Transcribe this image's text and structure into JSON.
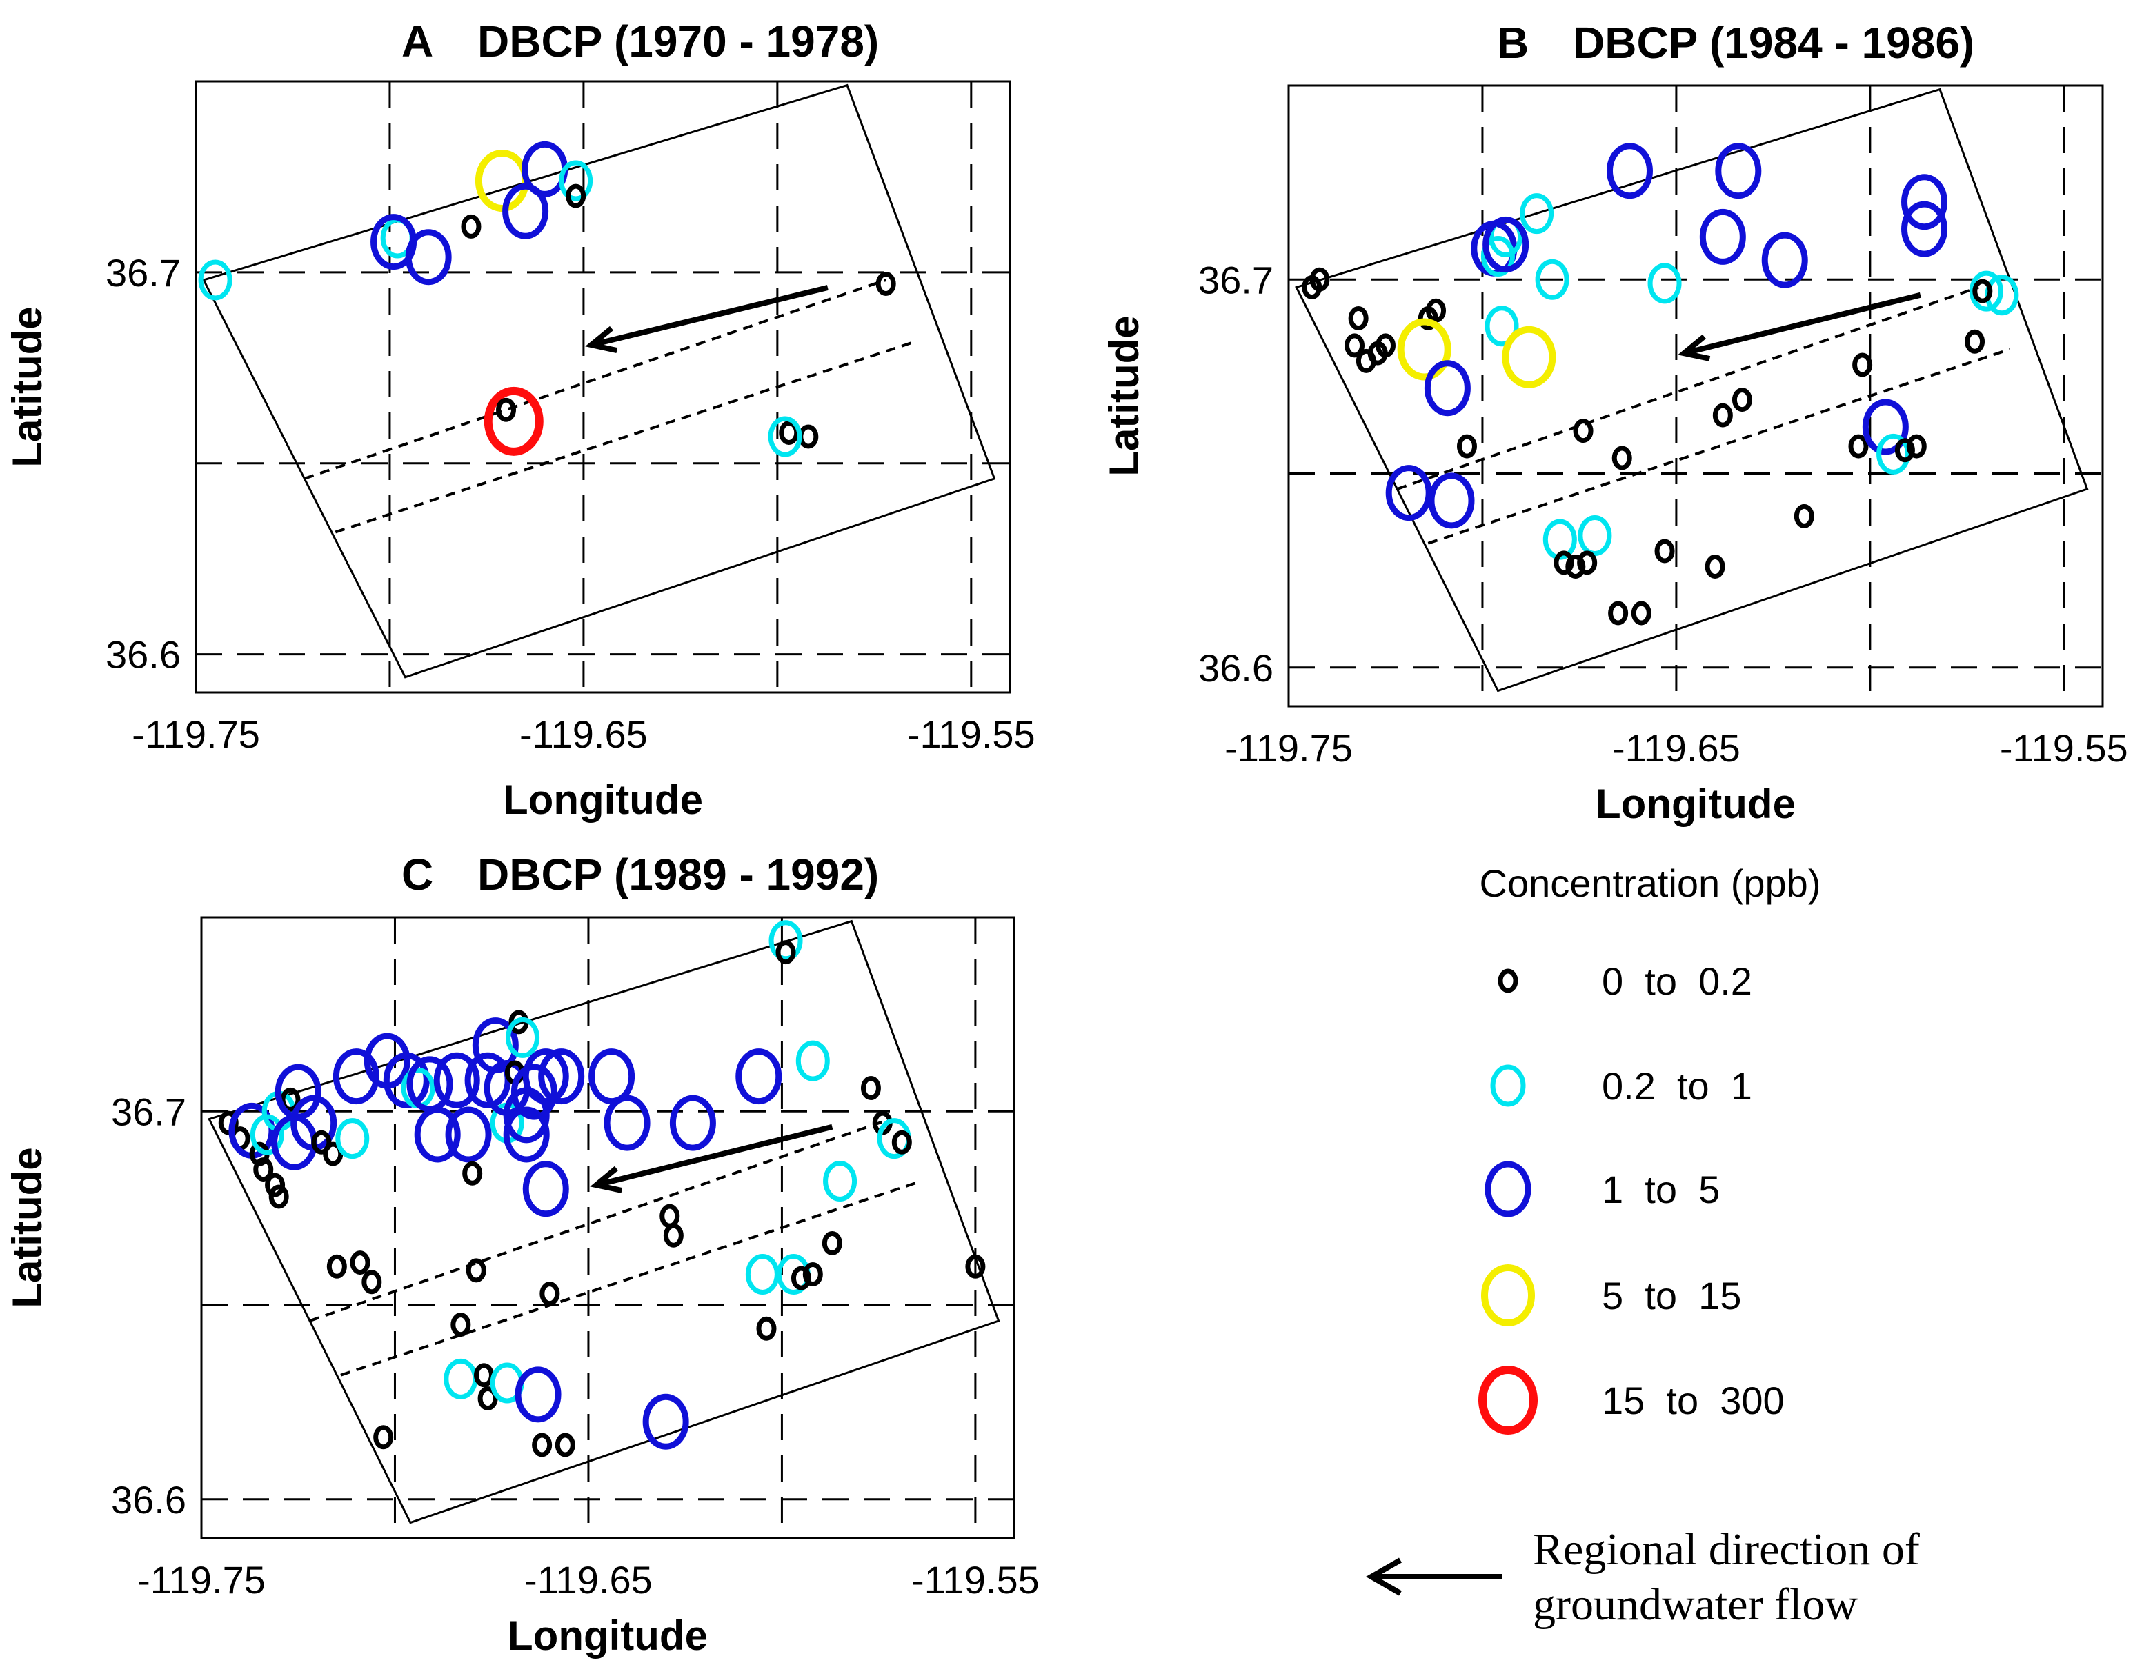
{
  "chart_data": [
    {
      "type": "scatter",
      "panel_letter": "A",
      "title": "DBCP (1970 - 1978)",
      "xlabel": "Longitude",
      "ylabel": "Latitude",
      "xlim": [
        -119.75,
        -119.54
      ],
      "ylim": [
        36.59,
        36.75
      ],
      "xticks": [
        -119.75,
        -119.65,
        -119.55
      ],
      "xtick_labels": [
        "-119.75",
        "-119.65",
        "-119.55"
      ],
      "yticks": [
        36.6,
        36.7
      ],
      "ytick_labels": [
        "36.6",
        "36.7"
      ],
      "points": [
        {
          "lon": -119.745,
          "lat": 36.698,
          "cat": 1
        },
        {
          "lon": -119.698,
          "lat": 36.709,
          "cat": 1
        },
        {
          "lon": -119.699,
          "lat": 36.708,
          "cat": 2
        },
        {
          "lon": -119.69,
          "lat": 36.704,
          "cat": 2
        },
        {
          "lon": -119.679,
          "lat": 36.712,
          "cat": 0
        },
        {
          "lon": -119.671,
          "lat": 36.724,
          "cat": 3
        },
        {
          "lon": -119.665,
          "lat": 36.716,
          "cat": 2
        },
        {
          "lon": -119.66,
          "lat": 36.727,
          "cat": 2
        },
        {
          "lon": -119.652,
          "lat": 36.724,
          "cat": 1
        },
        {
          "lon": -119.652,
          "lat": 36.72,
          "cat": 0
        },
        {
          "lon": -119.668,
          "lat": 36.661,
          "cat": 4
        },
        {
          "lon": -119.67,
          "lat": 36.664,
          "cat": 0
        },
        {
          "lon": -119.597,
          "lat": 36.658,
          "cat": 0
        },
        {
          "lon": -119.592,
          "lat": 36.657,
          "cat": 0
        },
        {
          "lon": -119.598,
          "lat": 36.657,
          "cat": 1
        },
        {
          "lon": -119.572,
          "lat": 36.697,
          "cat": 0
        }
      ]
    },
    {
      "type": "scatter",
      "panel_letter": "B",
      "title": "DBCP (1984 - 1986)",
      "xlabel": "Longitude",
      "ylabel": "Latitude",
      "xlim": [
        -119.75,
        -119.54
      ],
      "ylim": [
        36.59,
        36.75
      ],
      "xticks": [
        -119.75,
        -119.65,
        -119.55
      ],
      "xtick_labels": [
        "-119.75",
        "-119.65",
        "-119.55"
      ],
      "yticks": [
        36.6,
        36.7
      ],
      "ytick_labels": [
        "36.6",
        "36.7"
      ],
      "points": [
        {
          "lon": -119.742,
          "lat": 36.7,
          "cat": 0
        },
        {
          "lon": -119.744,
          "lat": 36.698,
          "cat": 0
        },
        {
          "lon": -119.732,
          "lat": 36.69,
          "cat": 0
        },
        {
          "lon": -119.733,
          "lat": 36.683,
          "cat": 0
        },
        {
          "lon": -119.73,
          "lat": 36.679,
          "cat": 0
        },
        {
          "lon": -119.727,
          "lat": 36.681,
          "cat": 0
        },
        {
          "lon": -119.725,
          "lat": 36.683,
          "cat": 0
        },
        {
          "lon": -119.714,
          "lat": 36.69,
          "cat": 0
        },
        {
          "lon": -119.712,
          "lat": 36.692,
          "cat": 0
        },
        {
          "lon": -119.715,
          "lat": 36.682,
          "cat": 3
        },
        {
          "lon": -119.709,
          "lat": 36.672,
          "cat": 2
        },
        {
          "lon": -119.704,
          "lat": 36.657,
          "cat": 0
        },
        {
          "lon": -119.719,
          "lat": 36.645,
          "cat": 2
        },
        {
          "lon": -119.708,
          "lat": 36.643,
          "cat": 2
        },
        {
          "lon": -119.697,
          "lat": 36.708,
          "cat": 2
        },
        {
          "lon": -119.696,
          "lat": 36.706,
          "cat": 1
        },
        {
          "lon": -119.694,
          "lat": 36.711,
          "cat": 1
        },
        {
          "lon": -119.694,
          "lat": 36.709,
          "cat": 2
        },
        {
          "lon": -119.686,
          "lat": 36.717,
          "cat": 1
        },
        {
          "lon": -119.682,
          "lat": 36.7,
          "cat": 1
        },
        {
          "lon": -119.695,
          "lat": 36.688,
          "cat": 1
        },
        {
          "lon": -119.688,
          "lat": 36.68,
          "cat": 3
        },
        {
          "lon": -119.662,
          "lat": 36.728,
          "cat": 2
        },
        {
          "lon": -119.653,
          "lat": 36.699,
          "cat": 1
        },
        {
          "lon": -119.634,
          "lat": 36.728,
          "cat": 2
        },
        {
          "lon": -119.638,
          "lat": 36.711,
          "cat": 2
        },
        {
          "lon": -119.622,
          "lat": 36.705,
          "cat": 2
        },
        {
          "lon": -119.586,
          "lat": 36.72,
          "cat": 2
        },
        {
          "lon": -119.586,
          "lat": 36.713,
          "cat": 2
        },
        {
          "lon": -119.57,
          "lat": 36.697,
          "cat": 1
        },
        {
          "lon": -119.566,
          "lat": 36.696,
          "cat": 1
        },
        {
          "lon": -119.571,
          "lat": 36.697,
          "cat": 0
        },
        {
          "lon": -119.573,
          "lat": 36.684,
          "cat": 0
        },
        {
          "lon": -119.602,
          "lat": 36.678,
          "cat": 0
        },
        {
          "lon": -119.68,
          "lat": 36.633,
          "cat": 1
        },
        {
          "lon": -119.671,
          "lat": 36.634,
          "cat": 1
        },
        {
          "lon": -119.679,
          "lat": 36.627,
          "cat": 0
        },
        {
          "lon": -119.676,
          "lat": 36.626,
          "cat": 0
        },
        {
          "lon": -119.673,
          "lat": 36.627,
          "cat": 0
        },
        {
          "lon": -119.674,
          "lat": 36.661,
          "cat": 0
        },
        {
          "lon": -119.664,
          "lat": 36.654,
          "cat": 0
        },
        {
          "lon": -119.653,
          "lat": 36.63,
          "cat": 0
        },
        {
          "lon": -119.64,
          "lat": 36.626,
          "cat": 0
        },
        {
          "lon": -119.665,
          "lat": 36.614,
          "cat": 0
        },
        {
          "lon": -119.659,
          "lat": 36.614,
          "cat": 0
        },
        {
          "lon": -119.638,
          "lat": 36.665,
          "cat": 0
        },
        {
          "lon": -119.633,
          "lat": 36.669,
          "cat": 0
        },
        {
          "lon": -119.617,
          "lat": 36.639,
          "cat": 0
        },
        {
          "lon": -119.603,
          "lat": 36.657,
          "cat": 0
        },
        {
          "lon": -119.596,
          "lat": 36.662,
          "cat": 2
        },
        {
          "lon": -119.594,
          "lat": 36.655,
          "cat": 1
        },
        {
          "lon": -119.591,
          "lat": 36.656,
          "cat": 0
        },
        {
          "lon": -119.588,
          "lat": 36.657,
          "cat": 0
        }
      ]
    },
    {
      "type": "scatter",
      "panel_letter": "C",
      "title": "DBCP (1989 - 1992)",
      "xlabel": "Longitude",
      "ylabel": "Latitude",
      "xlim": [
        -119.75,
        -119.54
      ],
      "ylim": [
        36.59,
        36.75
      ],
      "xticks": [
        -119.75,
        -119.65,
        -119.55
      ],
      "xtick_labels": [
        "-119.75",
        "-119.65",
        "-119.55"
      ],
      "yticks": [
        36.6,
        36.7
      ],
      "ytick_labels": [
        "36.6",
        "36.7"
      ],
      "points": [
        {
          "lon": -119.743,
          "lat": 36.697,
          "cat": 0
        },
        {
          "lon": -119.74,
          "lat": 36.693,
          "cat": 0
        },
        {
          "lon": -119.737,
          "lat": 36.695,
          "cat": 2
        },
        {
          "lon": -119.735,
          "lat": 36.689,
          "cat": 0
        },
        {
          "lon": -119.734,
          "lat": 36.685,
          "cat": 0
        },
        {
          "lon": -119.731,
          "lat": 36.681,
          "cat": 0
        },
        {
          "lon": -119.73,
          "lat": 36.678,
          "cat": 0
        },
        {
          "lon": -119.733,
          "lat": 36.694,
          "cat": 1
        },
        {
          "lon": -119.73,
          "lat": 36.7,
          "cat": 1
        },
        {
          "lon": -119.727,
          "lat": 36.703,
          "cat": 0
        },
        {
          "lon": -119.725,
          "lat": 36.705,
          "cat": 2
        },
        {
          "lon": -119.726,
          "lat": 36.692,
          "cat": 2
        },
        {
          "lon": -119.721,
          "lat": 36.697,
          "cat": 2
        },
        {
          "lon": -119.719,
          "lat": 36.692,
          "cat": 0
        },
        {
          "lon": -119.716,
          "lat": 36.689,
          "cat": 0
        },
        {
          "lon": -119.711,
          "lat": 36.693,
          "cat": 1
        },
        {
          "lon": -119.71,
          "lat": 36.709,
          "cat": 2
        },
        {
          "lon": -119.702,
          "lat": 36.713,
          "cat": 2
        },
        {
          "lon": -119.697,
          "lat": 36.708,
          "cat": 2
        },
        {
          "lon": -119.694,
          "lat": 36.706,
          "cat": 1
        },
        {
          "lon": -119.691,
          "lat": 36.707,
          "cat": 2
        },
        {
          "lon": -119.689,
          "lat": 36.694,
          "cat": 2
        },
        {
          "lon": -119.684,
          "lat": 36.708,
          "cat": 2
        },
        {
          "lon": -119.681,
          "lat": 36.694,
          "cat": 2
        },
        {
          "lon": -119.68,
          "lat": 36.684,
          "cat": 0
        },
        {
          "lon": -119.676,
          "lat": 36.708,
          "cat": 2
        },
        {
          "lon": -119.674,
          "lat": 36.717,
          "cat": 2
        },
        {
          "lon": -119.671,
          "lat": 36.697,
          "cat": 1
        },
        {
          "lon": -119.671,
          "lat": 36.706,
          "cat": 2
        },
        {
          "lon": -119.669,
          "lat": 36.71,
          "cat": 0
        },
        {
          "lon": -119.668,
          "lat": 36.723,
          "cat": 0
        },
        {
          "lon": -119.667,
          "lat": 36.719,
          "cat": 1
        },
        {
          "lon": -119.666,
          "lat": 36.699,
          "cat": 2
        },
        {
          "lon": -119.666,
          "lat": 36.694,
          "cat": 2
        },
        {
          "lon": -119.664,
          "lat": 36.705,
          "cat": 2
        },
        {
          "lon": -119.661,
          "lat": 36.709,
          "cat": 2
        },
        {
          "lon": -119.657,
          "lat": 36.709,
          "cat": 2
        },
        {
          "lon": -119.661,
          "lat": 36.68,
          "cat": 2
        },
        {
          "lon": -119.644,
          "lat": 36.709,
          "cat": 2
        },
        {
          "lon": -119.64,
          "lat": 36.697,
          "cat": 2
        },
        {
          "lon": -119.623,
          "lat": 36.697,
          "cat": 2
        },
        {
          "lon": -119.606,
          "lat": 36.709,
          "cat": 2
        },
        {
          "lon": -119.592,
          "lat": 36.713,
          "cat": 1
        },
        {
          "lon": -119.599,
          "lat": 36.744,
          "cat": 1
        },
        {
          "lon": -119.599,
          "lat": 36.741,
          "cat": 0
        },
        {
          "lon": -119.577,
          "lat": 36.706,
          "cat": 0
        },
        {
          "lon": -119.574,
          "lat": 36.697,
          "cat": 0
        },
        {
          "lon": -119.571,
          "lat": 36.693,
          "cat": 1
        },
        {
          "lon": -119.569,
          "lat": 36.692,
          "cat": 0
        },
        {
          "lon": -119.585,
          "lat": 36.682,
          "cat": 1
        },
        {
          "lon": -119.55,
          "lat": 36.66,
          "cat": 0
        },
        {
          "lon": -119.715,
          "lat": 36.66,
          "cat": 0
        },
        {
          "lon": -119.709,
          "lat": 36.661,
          "cat": 0
        },
        {
          "lon": -119.706,
          "lat": 36.656,
          "cat": 0
        },
        {
          "lon": -119.683,
          "lat": 36.645,
          "cat": 0
        },
        {
          "lon": -119.679,
          "lat": 36.659,
          "cat": 0
        },
        {
          "lon": -119.66,
          "lat": 36.653,
          "cat": 0
        },
        {
          "lon": -119.629,
          "lat": 36.673,
          "cat": 0
        },
        {
          "lon": -119.628,
          "lat": 36.668,
          "cat": 0
        },
        {
          "lon": -119.605,
          "lat": 36.658,
          "cat": 1
        },
        {
          "lon": -119.597,
          "lat": 36.658,
          "cat": 1
        },
        {
          "lon": -119.595,
          "lat": 36.657,
          "cat": 0
        },
        {
          "lon": -119.592,
          "lat": 36.658,
          "cat": 0
        },
        {
          "lon": -119.587,
          "lat": 36.666,
          "cat": 0
        },
        {
          "lon": -119.604,
          "lat": 36.644,
          "cat": 0
        },
        {
          "lon": -119.63,
          "lat": 36.62,
          "cat": 2
        },
        {
          "lon": -119.683,
          "lat": 36.631,
          "cat": 1
        },
        {
          "lon": -119.677,
          "lat": 36.632,
          "cat": 0
        },
        {
          "lon": -119.676,
          "lat": 36.626,
          "cat": 0
        },
        {
          "lon": -119.671,
          "lat": 36.63,
          "cat": 1
        },
        {
          "lon": -119.663,
          "lat": 36.627,
          "cat": 2
        },
        {
          "lon": -119.662,
          "lat": 36.614,
          "cat": 0
        },
        {
          "lon": -119.656,
          "lat": 36.614,
          "cat": 0
        },
        {
          "lon": -119.703,
          "lat": 36.616,
          "cat": 0
        }
      ]
    }
  ],
  "legend": {
    "title": "Concentration (ppb)",
    "items": [
      {
        "label": "0  to  0.2",
        "color": "#000000"
      },
      {
        "label": "0.2  to  1",
        "color": "#00e5f0"
      },
      {
        "label": "1  to  5",
        "color": "#1010d8"
      },
      {
        "label": "5  to  15",
        "color": "#f4ee00"
      },
      {
        "label": "15  to  300",
        "color": "#ff0d0d"
      }
    ]
  },
  "flow_note": {
    "line1": "Regional direction of",
    "line2": "groundwater flow"
  }
}
